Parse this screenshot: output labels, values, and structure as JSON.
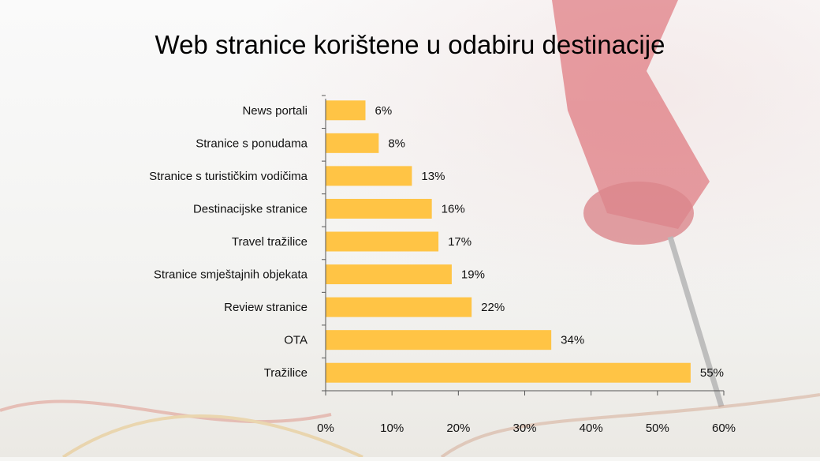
{
  "chart_data": {
    "type": "bar",
    "orientation": "horizontal",
    "title": "Web stranice korištene u odabiru destinacije",
    "categories": [
      "News portali",
      "Stranice s ponudama",
      "Stranice s turističkim vodičima",
      "Destinacijske stranice",
      "Travel tražilice",
      "Stranice smještajnih objekata",
      "Review stranice",
      "OTA",
      "Tražilice"
    ],
    "values": [
      6,
      8,
      13,
      16,
      17,
      19,
      22,
      34,
      55
    ],
    "value_labels": [
      "6%",
      "8%",
      "13%",
      "16%",
      "17%",
      "19%",
      "22%",
      "34%",
      "55%"
    ],
    "xlim": [
      0,
      60
    ],
    "ticks": [
      0,
      10,
      20,
      30,
      40,
      50,
      60
    ],
    "tick_labels": [
      "0%",
      "10%",
      "20%",
      "30%",
      "40%",
      "50%",
      "60%"
    ],
    "bar_color": "#ffc445",
    "grid": false,
    "legend": false
  }
}
